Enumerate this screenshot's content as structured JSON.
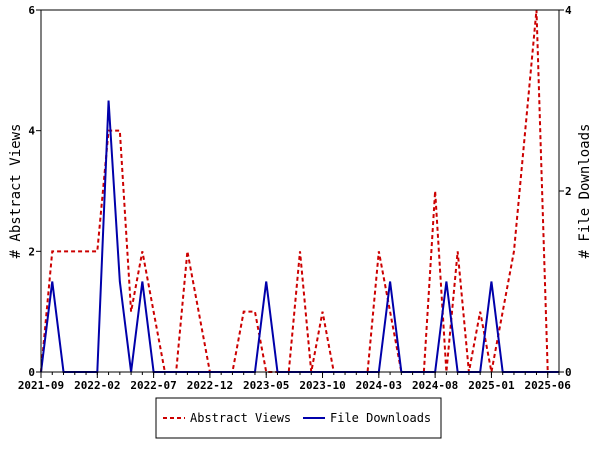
{
  "chart_data": {
    "type": "line",
    "title": "",
    "x": [
      "2021-09",
      "2021-10",
      "2021-11",
      "2021-12",
      "2022-01",
      "2022-02",
      "2022-03",
      "2022-04",
      "2022-05",
      "2022-06",
      "2022-07",
      "2022-08",
      "2022-09",
      "2022-10",
      "2022-11",
      "2022-12",
      "2023-01",
      "2023-02",
      "2023-03",
      "2023-04",
      "2023-05",
      "2023-06",
      "2023-07",
      "2023-08",
      "2023-09",
      "2023-10",
      "2023-11",
      "2023-12",
      "2024-01",
      "2024-02",
      "2024-03",
      "2024-04",
      "2024-05",
      "2024-06",
      "2024-07",
      "2024-08",
      "2024-09",
      "2024-10",
      "2024-11",
      "2024-12",
      "2025-01",
      "2025-02",
      "2025-03",
      "2025-04",
      "2025-05",
      "2025-06",
      "2025-07"
    ],
    "x_tick_labels": [
      "2021-09",
      "2022-02",
      "2022-07",
      "2022-12",
      "2023-05",
      "2023-10",
      "2024-03",
      "2024-08",
      "2025-01",
      "2025-06"
    ],
    "y_left": {
      "label": "# Abstract Views",
      "ylim": [
        0,
        6
      ],
      "ticks": [
        "0",
        "2",
        "4",
        "6"
      ]
    },
    "y_right": {
      "label": "# File Downloads",
      "ylim": [
        0,
        4
      ],
      "ticks": [
        "0",
        "2",
        "4"
      ]
    },
    "series": [
      {
        "name": "Abstract Views",
        "axis": "left",
        "color": "#cc0000",
        "dashed": true,
        "values": [
          0,
          2,
          2,
          2,
          2,
          2,
          4,
          4,
          1,
          2,
          1,
          0,
          0,
          2,
          1,
          0,
          0,
          0,
          1,
          1,
          0,
          0,
          0,
          2,
          0,
          1,
          0,
          0,
          0,
          0,
          2,
          1,
          0,
          0,
          0,
          3,
          0,
          2,
          0,
          1,
          0,
          1,
          2,
          4,
          6,
          0,
          0
        ]
      },
      {
        "name": "File Downloads",
        "axis": "right",
        "color": "#0000aa",
        "dashed": false,
        "values": [
          0,
          1,
          0,
          0,
          0,
          0,
          3,
          1,
          0,
          1,
          0,
          0,
          0,
          0,
          0,
          0,
          0,
          0,
          0,
          0,
          1,
          0,
          0,
          0,
          0,
          0,
          0,
          0,
          0,
          0,
          0,
          1,
          0,
          0,
          0,
          0,
          1,
          0,
          0,
          0,
          1,
          0,
          0,
          0,
          0,
          0,
          0
        ]
      }
    ],
    "legend": {
      "placement": "bottom-center",
      "entries": [
        "Abstract Views",
        "File Downloads"
      ]
    },
    "grid": false
  }
}
